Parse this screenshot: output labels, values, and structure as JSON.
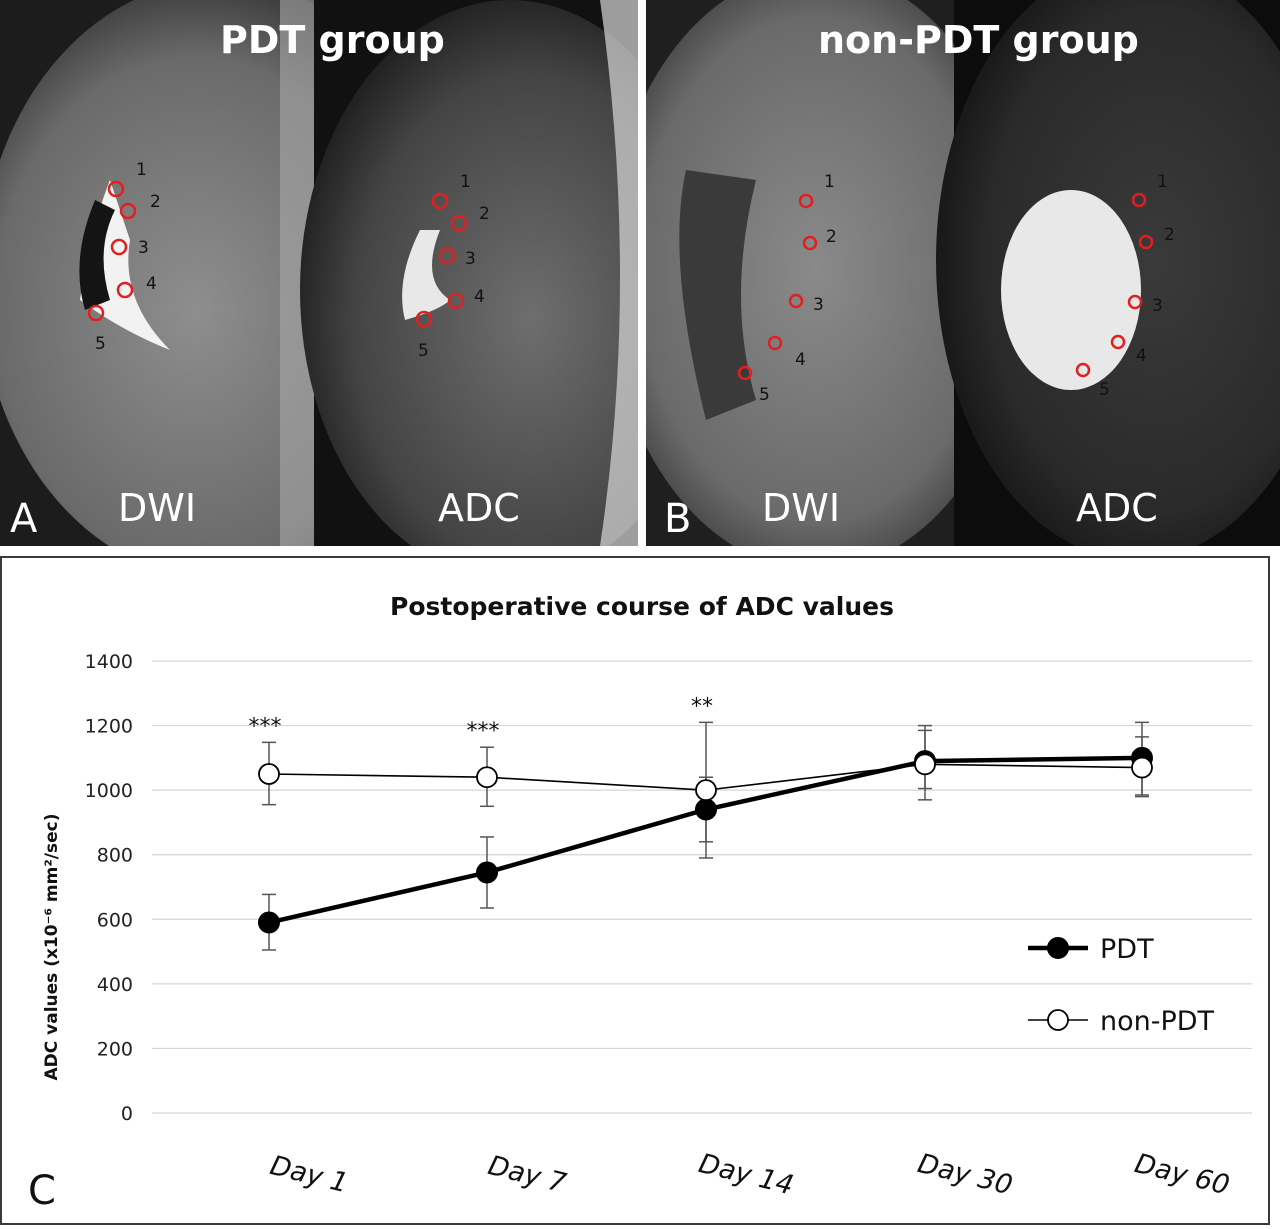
{
  "panel_a": {
    "letter": "A",
    "title": "PDT group",
    "left_label": "DWI",
    "right_label": "ADC",
    "left_rois": [
      "1",
      "2",
      "3",
      "4",
      "5"
    ],
    "right_rois": [
      "1",
      "2",
      "3",
      "4",
      "5"
    ]
  },
  "panel_b": {
    "letter": "B",
    "title": "non-PDT group",
    "left_label": "DWI",
    "right_label": "ADC",
    "left_rois": [
      "1",
      "2",
      "3",
      "4",
      "5"
    ],
    "right_rois": [
      "1",
      "2",
      "3",
      "4",
      "5"
    ]
  },
  "colors": {
    "roi_circle": "#e02020",
    "pdt_line": "#000000",
    "non_pdt_line": "#000000",
    "grid": "#cdd8dc"
  },
  "chart_data": {
    "type": "line",
    "panel_letter": "C",
    "title": "Postoperative course of ADC values",
    "ylabel": "ADC values (x10⁻⁶ mm²/sec)",
    "xlabel": "",
    "categories": [
      "Day 1",
      "Day 7",
      "Day 14",
      "Day 30",
      "Day 60"
    ],
    "ylim": [
      0,
      1400
    ],
    "yticks": [
      0,
      200,
      400,
      600,
      800,
      1000,
      1200,
      1400
    ],
    "grid": true,
    "legend_position": "bottom-right",
    "series": [
      {
        "name": "PDT",
        "marker": "filled-circle",
        "values": [
          590,
          745,
          940,
          1090,
          1100
        ],
        "error_low": [
          505,
          635,
          790,
          970,
          985
        ],
        "error_high": [
          677,
          855,
          1040,
          1200,
          1210
        ]
      },
      {
        "name": "non-PDT",
        "marker": "open-circle",
        "values": [
          1050,
          1040,
          1000,
          1080,
          1070
        ],
        "error_low": [
          955,
          950,
          840,
          1005,
          980
        ],
        "error_high": [
          1148,
          1133,
          1210,
          1185,
          1165
        ]
      }
    ],
    "annotations": [
      {
        "category": "Day 1",
        "text": "***"
      },
      {
        "category": "Day 7",
        "text": "***"
      },
      {
        "category": "Day 14",
        "text": "**"
      }
    ]
  }
}
